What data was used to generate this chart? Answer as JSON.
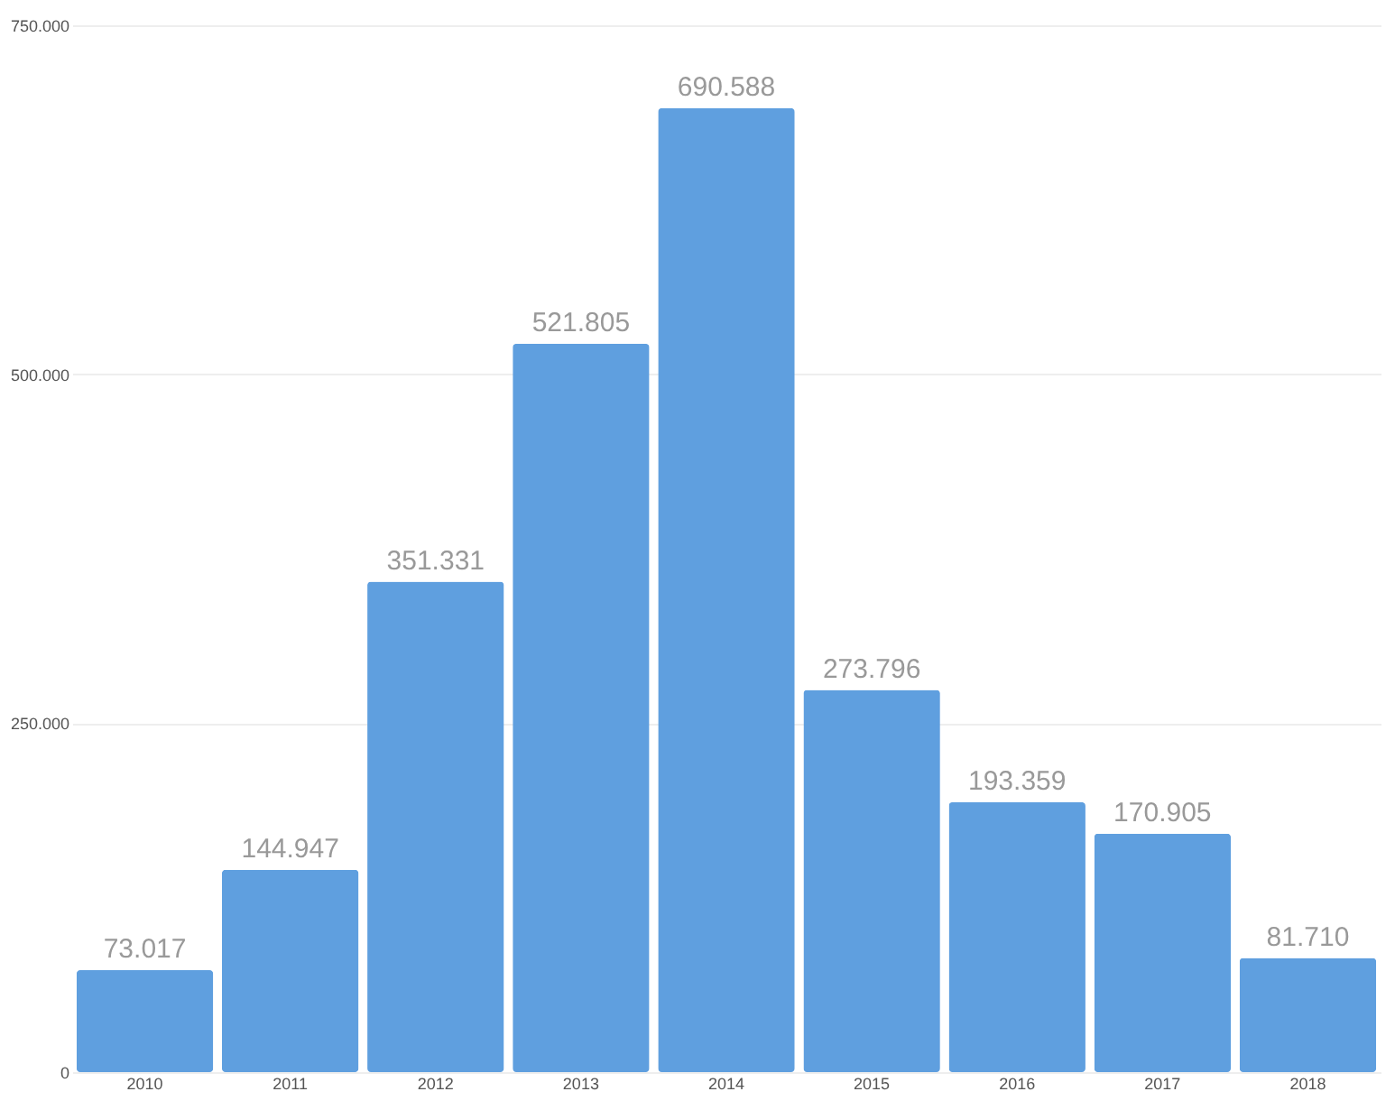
{
  "chart_data": {
    "type": "bar",
    "categories": [
      "2010",
      "2011",
      "2012",
      "2013",
      "2014",
      "2015",
      "2016",
      "2017",
      "2018"
    ],
    "values": [
      73017,
      144947,
      351331,
      521805,
      690588,
      273796,
      193359,
      170905,
      81710
    ],
    "value_labels": [
      "73.017",
      "144.947",
      "351.331",
      "521.805",
      "690.588",
      "273.796",
      "193.359",
      "170.905",
      "81.710"
    ],
    "color": "#5f9fdf",
    "ylim": [
      0,
      750000
    ],
    "yticks": [
      {
        "value": 0,
        "label": "0"
      },
      {
        "value": 250000,
        "label": "250.000"
      },
      {
        "value": 500000,
        "label": "500.000"
      },
      {
        "value": 750000,
        "label": "750.000"
      }
    ],
    "grid": "y"
  }
}
